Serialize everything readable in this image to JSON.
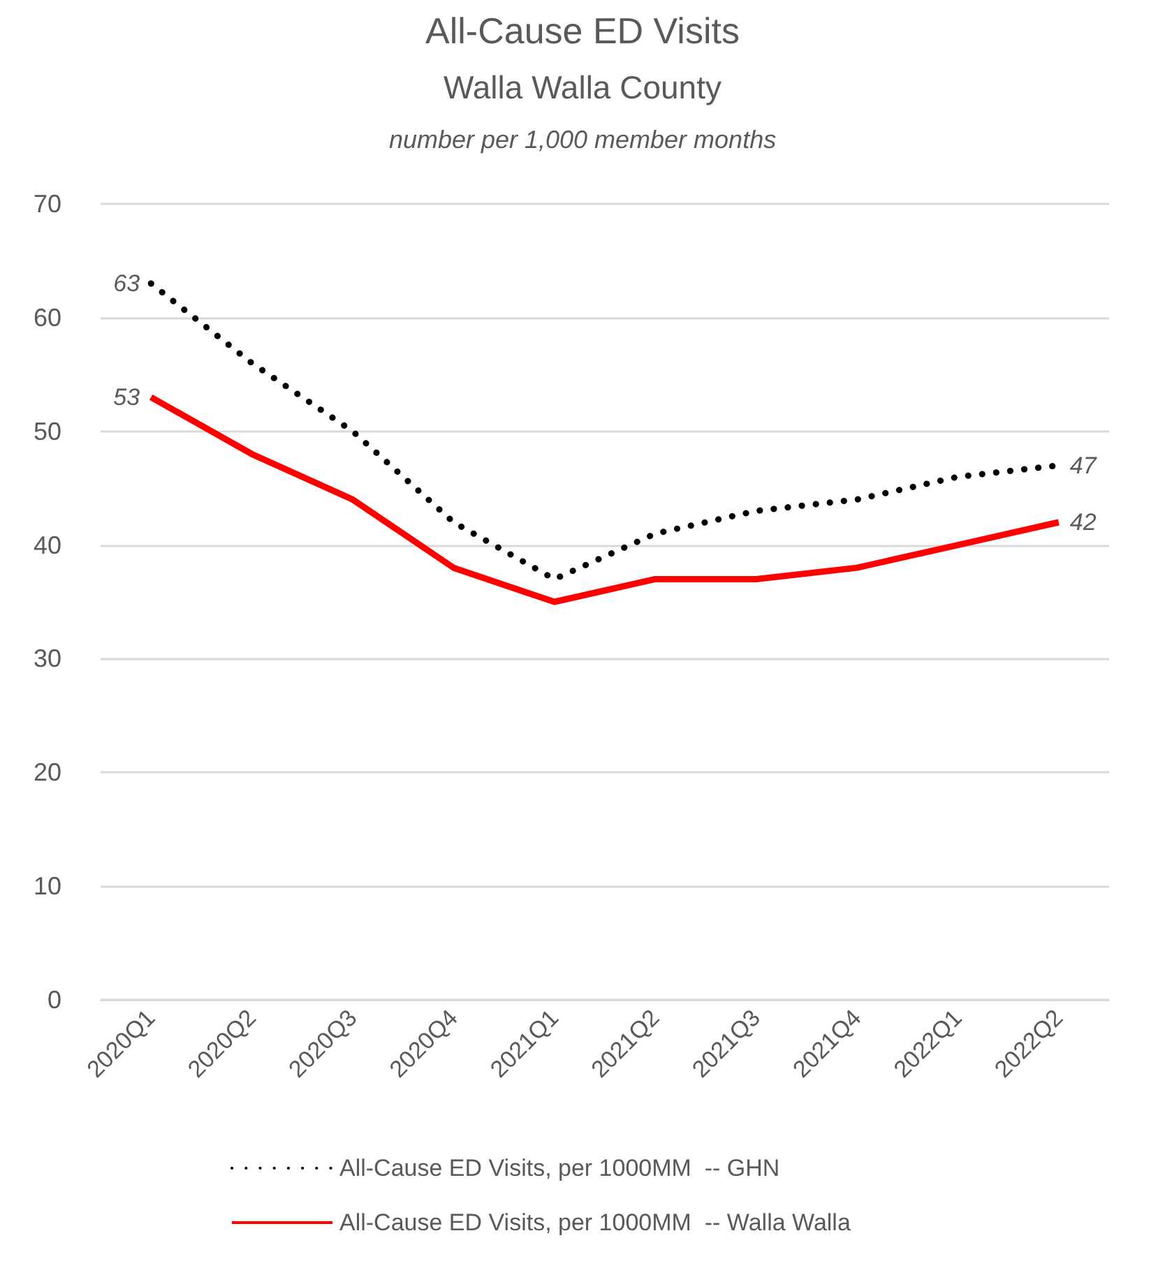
{
  "chart_data": {
    "type": "line",
    "title": "All-Cause ED Visits",
    "subtitle": "Walla Walla County\nnumber per 1,000 member months",
    "categories": [
      "2020Q1",
      "2020Q2",
      "2020Q3",
      "2020Q4",
      "2021Q1",
      "2021Q2",
      "2021Q3",
      "2021Q4",
      "2022Q1",
      "2022Q2"
    ],
    "series": [
      {
        "name": "All-Cause ED Visits, per 1000MM  -- GHN",
        "color": "#000000",
        "line_style": "dotted",
        "values": [
          63,
          56,
          50,
          42,
          37,
          41,
          43,
          44,
          46,
          47
        ],
        "value_labels": [
          "63",
          null,
          null,
          null,
          null,
          null,
          null,
          null,
          null,
          "47"
        ]
      },
      {
        "name": "All-Cause ED Visits, per 1000MM  -- Walla Walla",
        "color": "#ff0000",
        "line_style": "solid",
        "values": [
          53,
          48,
          44,
          38,
          35,
          37,
          37,
          38,
          40,
          42
        ],
        "value_labels": [
          "53",
          null,
          null,
          null,
          null,
          null,
          null,
          null,
          null,
          "42"
        ]
      }
    ],
    "ylim": [
      0,
      70
    ],
    "yticks": [
      0,
      10,
      20,
      30,
      40,
      50,
      60,
      70
    ],
    "grid": "y",
    "legend": "bottom",
    "marker": "none"
  }
}
